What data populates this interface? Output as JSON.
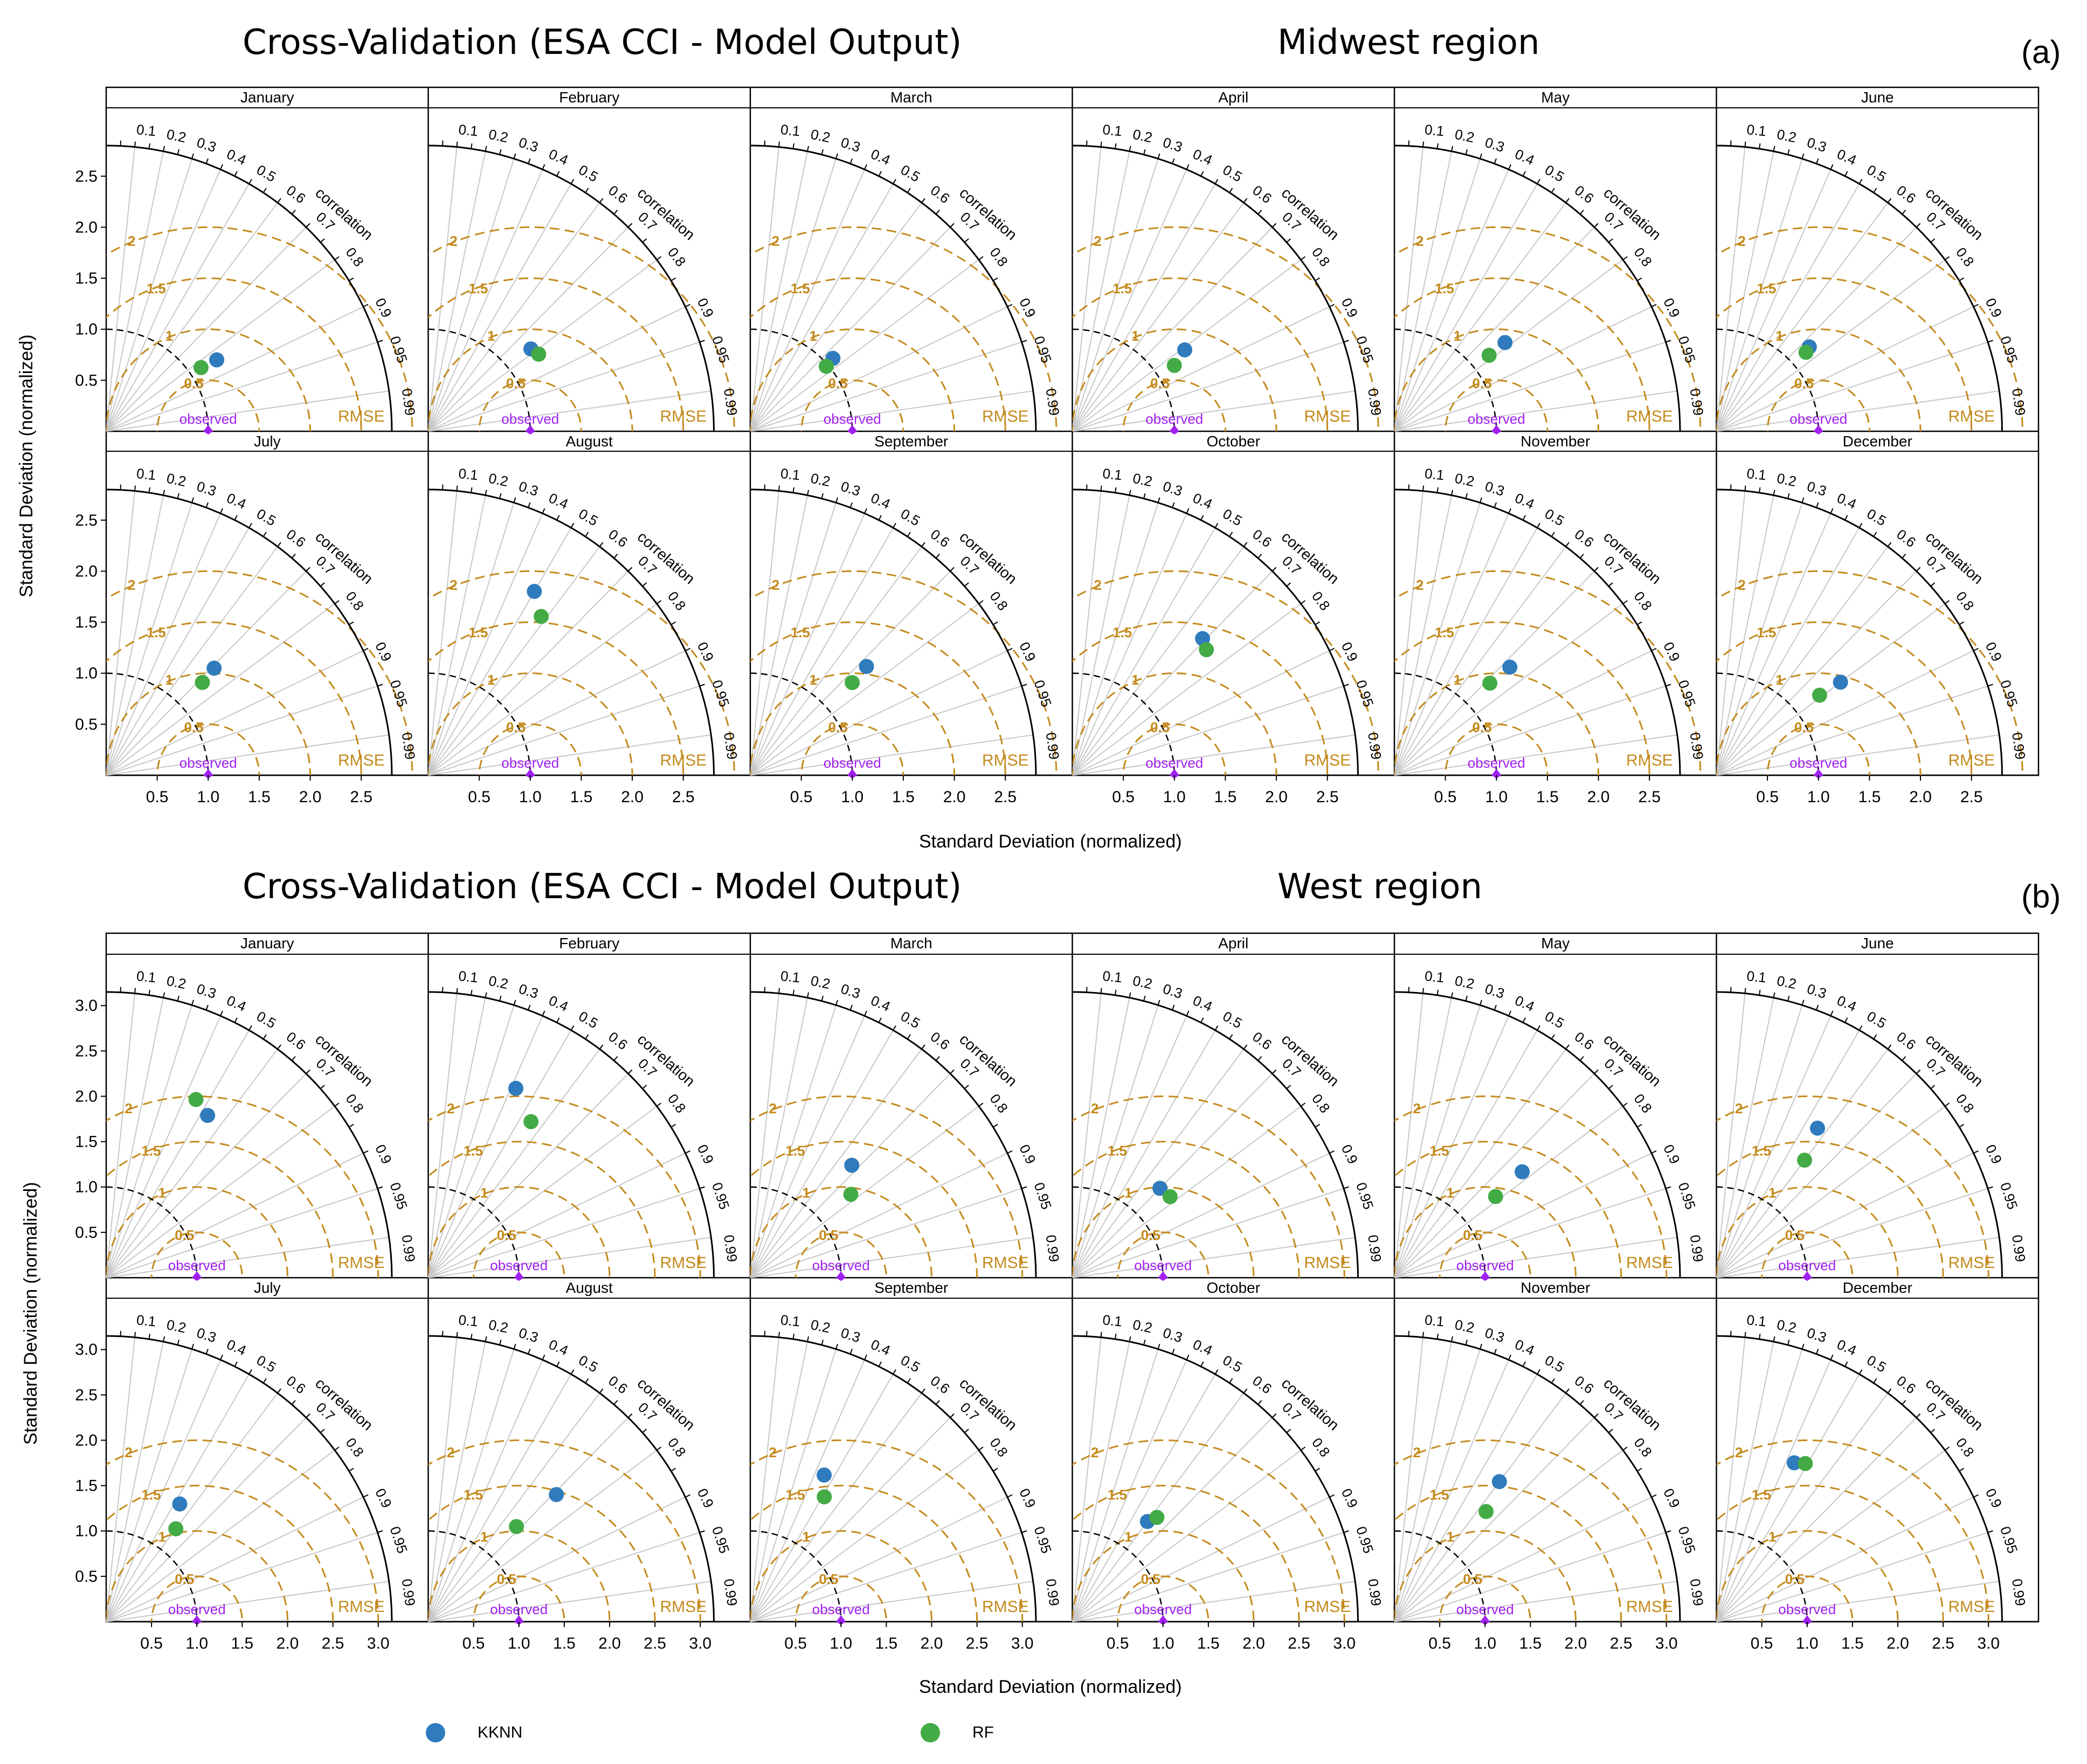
{
  "figure": {
    "colors": {
      "kknn": "#2f7bbd",
      "rf": "#43ab45",
      "rmse": "#c48a1c",
      "observed": "#a020f0",
      "grid": "#c8c8c8"
    },
    "legend": {
      "kknn": "KKNN",
      "rf": "RF"
    },
    "axis_labels": {
      "x": "Standard Deviation (normalized)",
      "y": "Standard Deviation (normalized)"
    },
    "sections": [
      {
        "id": "a",
        "title": "Cross-Validation (ESA CCI - Model Output)",
        "region": "Midwest region",
        "panel_letter": "(a)"
      },
      {
        "id": "b",
        "title": "Cross-Validation (ESA CCI - Model Output)",
        "region": "West region",
        "panel_letter": "(b)"
      }
    ],
    "plot_text": {
      "correlation": "correlation",
      "rmse": "RMSE",
      "observed": "observed"
    }
  },
  "chart_data": [
    {
      "type": "scatter",
      "subtype": "taylor-diagram-grid",
      "section": "Midwest region",
      "xlabel": "Standard Deviation (normalized)",
      "ylabel": "Standard Deviation (normalized)",
      "sd_max": 2.8,
      "sd_ticks": [
        0.5,
        1.0,
        1.5,
        2.0,
        2.5
      ],
      "sd_tick_labels": [
        "0.5",
        "1.0",
        "1.5",
        "2.0",
        "2.5"
      ],
      "correlation_ticks": [
        "0.1",
        "0.2",
        "0.3",
        "0.4",
        "0.5",
        "0.6",
        "0.7",
        "0.8",
        "0.9",
        "0.95",
        "0.99"
      ],
      "rmse_contours": [
        0.5,
        1,
        1.5,
        2
      ],
      "rmse_labels": [
        "0.5",
        "1",
        "1.5",
        "2"
      ],
      "observed_sd": 1.0,
      "series": [
        {
          "name": "KKNN",
          "months": [
            "January",
            "February",
            "March",
            "April",
            "May",
            "June",
            "July",
            "August",
            "September",
            "October",
            "November",
            "December"
          ],
          "sd": [
            1.29,
            1.29,
            1.08,
            1.36,
            1.39,
            1.23,
            1.49,
            2.08,
            1.56,
            1.85,
            1.55,
            1.52
          ],
          "corr": [
            0.84,
            0.78,
            0.75,
            0.81,
            0.78,
            0.74,
            0.71,
            0.5,
            0.73,
            0.69,
            0.73,
            0.8
          ]
        },
        {
          "name": "RF",
          "months": [
            "January",
            "February",
            "March",
            "April",
            "May",
            "June",
            "July",
            "August",
            "September",
            "October",
            "November",
            "December"
          ],
          "sd": [
            1.12,
            1.32,
            0.98,
            1.19,
            1.19,
            1.17,
            1.31,
            1.91,
            1.35,
            1.8,
            1.3,
            1.28
          ],
          "corr": [
            0.83,
            0.82,
            0.76,
            0.84,
            0.78,
            0.75,
            0.72,
            0.58,
            0.74,
            0.73,
            0.72,
            0.79
          ]
        }
      ]
    },
    {
      "type": "scatter",
      "subtype": "taylor-diagram-grid",
      "section": "West region",
      "xlabel": "Standard Deviation (normalized)",
      "ylabel": "Standard Deviation (normalized)",
      "sd_max": 3.15,
      "sd_ticks": [
        0.5,
        1.0,
        1.5,
        2.0,
        2.5,
        3.0
      ],
      "sd_tick_labels": [
        "0.5",
        "1.0",
        "1.5",
        "2.0",
        "2.5",
        "3.0"
      ],
      "correlation_ticks": [
        "0.1",
        "0.2",
        "0.3",
        "0.4",
        "0.5",
        "0.6",
        "0.7",
        "0.8",
        "0.9",
        "0.95",
        "0.99"
      ],
      "rmse_contours": [
        0.5,
        1,
        1.5,
        2
      ],
      "rmse_labels": [
        "0.5",
        "1",
        "1.5",
        "2"
      ],
      "observed_sd": 1.0,
      "series": [
        {
          "name": "KKNN",
          "months": [
            "January",
            "February",
            "March",
            "April",
            "May",
            "June",
            "July",
            "August",
            "September",
            "October",
            "November",
            "December"
          ],
          "sd": [
            2.11,
            2.3,
            1.67,
            1.38,
            1.83,
            1.99,
            1.53,
            1.99,
            1.81,
            1.38,
            1.93,
            1.95
          ],
          "corr": [
            0.53,
            0.42,
            0.67,
            0.7,
            0.77,
            0.56,
            0.53,
            0.71,
            0.45,
            0.6,
            0.6,
            0.44
          ]
        },
        {
          "name": "RF",
          "months": [
            "January",
            "February",
            "March",
            "April",
            "May",
            "June",
            "July",
            "August",
            "September",
            "October",
            "November",
            "December"
          ],
          "sd": [
            2.2,
            2.06,
            1.44,
            1.4,
            1.43,
            1.62,
            1.28,
            1.43,
            1.6,
            1.48,
            1.58,
            2.0
          ],
          "corr": [
            0.45,
            0.55,
            0.77,
            0.77,
            0.78,
            0.6,
            0.6,
            0.68,
            0.51,
            0.63,
            0.64,
            0.49
          ]
        }
      ]
    }
  ]
}
